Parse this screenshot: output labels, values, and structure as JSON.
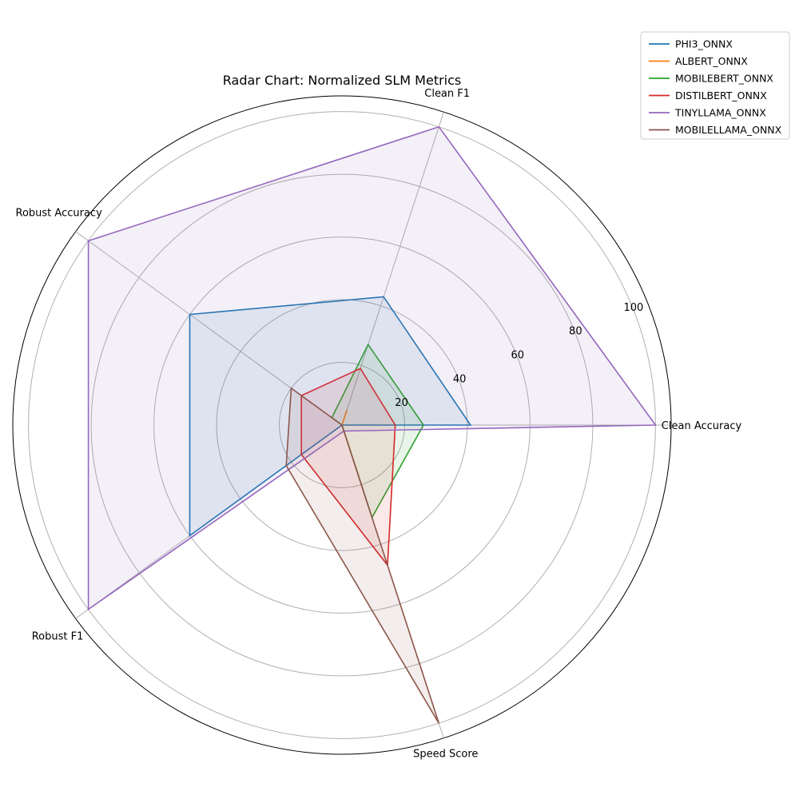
{
  "chart_data": {
    "type": "radar",
    "title": "Radar Chart: Normalized SLM Metrics",
    "axes": [
      "Clean Accuracy",
      "Clean F1",
      "Robust Accuracy",
      "Robust F1",
      "Speed Score"
    ],
    "r_ticks": [
      20,
      40,
      60,
      80,
      100
    ],
    "r_max": 105,
    "grid": true,
    "legend_position": "top-right",
    "series": [
      {
        "name": "PHI3_ONNX",
        "color": "#1f77b4",
        "values": [
          41,
          43,
          60,
          60,
          0
        ]
      },
      {
        "name": "ALBERT_ONNX",
        "color": "#ff7f0e",
        "values": [
          0,
          5,
          0,
          0,
          22
        ]
      },
      {
        "name": "MOBILEBERT_ONNX",
        "color": "#2ca02c",
        "values": [
          26,
          27,
          4,
          0,
          31
        ]
      },
      {
        "name": "DISTILBERT_ONNX",
        "color": "#d62728",
        "values": [
          17,
          19,
          16,
          16,
          47
        ]
      },
      {
        "name": "TINYLLAMA_ONNX",
        "color": "#9467bd",
        "values": [
          100,
          100,
          100,
          100,
          2
        ]
      },
      {
        "name": "MOBILELLAMA_ONNX",
        "color": "#8c564b",
        "values": [
          0,
          0,
          20,
          22,
          100
        ]
      }
    ]
  }
}
